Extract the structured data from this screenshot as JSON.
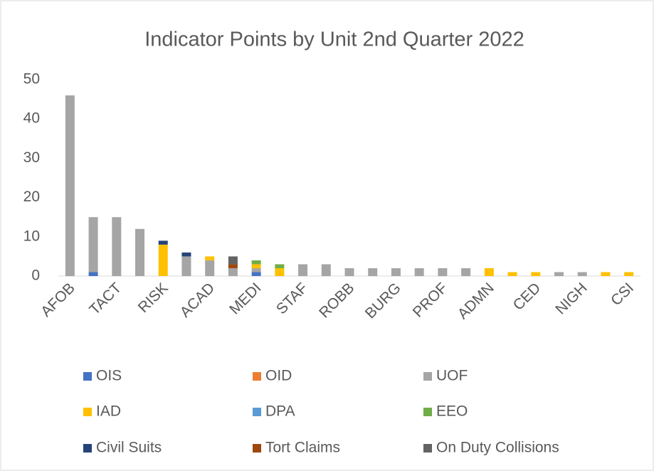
{
  "chart_data": {
    "type": "stacked_bar",
    "title": "Indicator Points by Unit 2nd Quarter 2022",
    "categories": [
      "AFOB",
      null,
      "TACT",
      null,
      "RISK",
      null,
      "ACAD",
      null,
      "MEDI",
      null,
      "STAF",
      null,
      "ROBB",
      null,
      "BURG",
      null,
      "PROF",
      null,
      "ADMN",
      null,
      "CED",
      null,
      "NIGH",
      null,
      "CSI"
    ],
    "series": [
      {
        "name": "OIS",
        "color": "#4472c4",
        "values": [
          0,
          1,
          0,
          0,
          0,
          0,
          0,
          0,
          1,
          0,
          0,
          0,
          0,
          0,
          0,
          0,
          0,
          0,
          0,
          0,
          0,
          0,
          0,
          0,
          0
        ]
      },
      {
        "name": "OID",
        "color": "#ed7d31",
        "values": [
          0,
          0,
          0,
          0,
          0,
          0,
          0,
          0,
          0,
          0,
          0,
          0,
          0,
          0,
          0,
          0,
          0,
          0,
          0,
          0,
          0,
          0,
          0,
          0,
          0
        ]
      },
      {
        "name": "UOF",
        "color": "#a5a5a5",
        "values": [
          46,
          14,
          15,
          12,
          0,
          5,
          4,
          2,
          1,
          0,
          3,
          3,
          2,
          2,
          2,
          2,
          2,
          2,
          0,
          0,
          0,
          1,
          1,
          0,
          0
        ]
      },
      {
        "name": "IAD",
        "color": "#ffc000",
        "values": [
          0,
          0,
          0,
          0,
          8,
          0,
          1,
          0,
          1,
          2,
          0,
          0,
          0,
          0,
          0,
          0,
          0,
          0,
          2,
          1,
          1,
          0,
          0,
          1,
          1
        ]
      },
      {
        "name": "DPA",
        "color": "#5b9bd5",
        "values": [
          0,
          0,
          0,
          0,
          0,
          0,
          0,
          0,
          0,
          0,
          0,
          0,
          0,
          0,
          0,
          0,
          0,
          0,
          0,
          0,
          0,
          0,
          0,
          0,
          0
        ]
      },
      {
        "name": "EEO",
        "color": "#70ad47",
        "values": [
          0,
          0,
          0,
          0,
          0,
          0,
          0,
          0,
          1,
          1,
          0,
          0,
          0,
          0,
          0,
          0,
          0,
          0,
          0,
          0,
          0,
          0,
          0,
          0,
          0
        ]
      },
      {
        "name": "Civil Suits",
        "color": "#264478",
        "values": [
          0,
          0,
          0,
          0,
          1,
          1,
          0,
          0,
          0,
          0,
          0,
          0,
          0,
          0,
          0,
          0,
          0,
          0,
          0,
          0,
          0,
          0,
          0,
          0,
          0
        ]
      },
      {
        "name": "Tort Claims",
        "color": "#9e480e",
        "values": [
          0,
          0,
          0,
          0,
          0,
          0,
          0,
          1,
          0,
          0,
          0,
          0,
          0,
          0,
          0,
          0,
          0,
          0,
          0,
          0,
          0,
          0,
          0,
          0,
          0
        ]
      },
      {
        "name": "On Duty Collisions",
        "color": "#636363",
        "values": [
          0,
          0,
          0,
          0,
          0,
          0,
          0,
          2,
          0,
          0,
          0,
          0,
          0,
          0,
          0,
          0,
          0,
          0,
          0,
          0,
          0,
          0,
          0,
          0,
          0
        ]
      }
    ],
    "ylim": [
      0,
      50
    ],
    "yticks": [
      0,
      10,
      20,
      30,
      40,
      50
    ],
    "grid": false,
    "legend": "bottom"
  }
}
